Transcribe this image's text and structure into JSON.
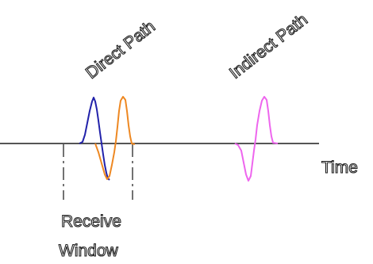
{
  "labels": {
    "direct_path": "Direct Path",
    "indirect_path": "Indirect Path",
    "time": "Time",
    "receive_window_line1": "Receive",
    "receive_window_line2": "Window"
  },
  "colors": {
    "axis": "#555555",
    "window_marker": "#444444",
    "direct_pulse": "#2222aa",
    "delayed_pulse": "#ee8822",
    "indirect_pulse": "#ee66ee",
    "background": "#ffffff"
  }
}
